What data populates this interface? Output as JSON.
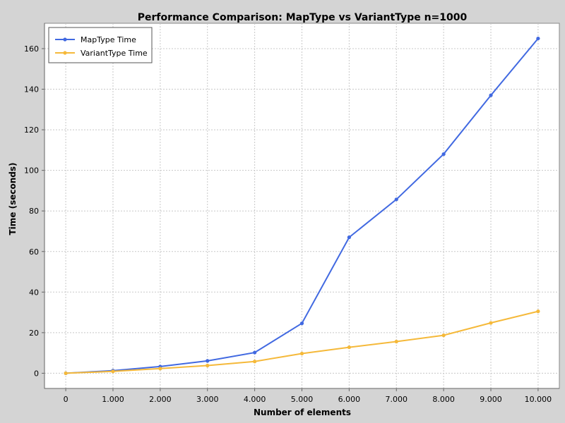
{
  "chart_data": {
    "type": "line",
    "title": "Performance Comparison: MapType vs VariantType n=1000",
    "xlabel": "Number of elements",
    "ylabel": "Time (seconds)",
    "x": [
      0,
      1000,
      2000,
      3000,
      4000,
      5000,
      6000,
      7000,
      8000,
      9000,
      10000
    ],
    "x_tick_labels": [
      "0",
      "1.000",
      "2.000",
      "3.000",
      "4.000",
      "5.000",
      "6.000",
      "7.000",
      "8.000",
      "9.000",
      "10.000"
    ],
    "y_ticks": [
      0,
      20,
      40,
      60,
      80,
      100,
      120,
      140,
      160
    ],
    "xlim": [
      -450,
      10450
    ],
    "ylim": [
      -7.5,
      172.5
    ],
    "grid": true,
    "legend_position": "top-left",
    "series": [
      {
        "name": "MapType Time",
        "color": "#4169e1",
        "values": [
          0,
          1.3,
          3.3,
          6.1,
          10.2,
          24.6,
          67.0,
          85.7,
          108.0,
          137.0,
          165.0
        ]
      },
      {
        "name": "VariantType Time",
        "color": "#f5b93a",
        "values": [
          0,
          0.9,
          2.3,
          3.8,
          5.8,
          9.7,
          12.8,
          15.6,
          18.7,
          24.8,
          30.5
        ]
      }
    ]
  }
}
